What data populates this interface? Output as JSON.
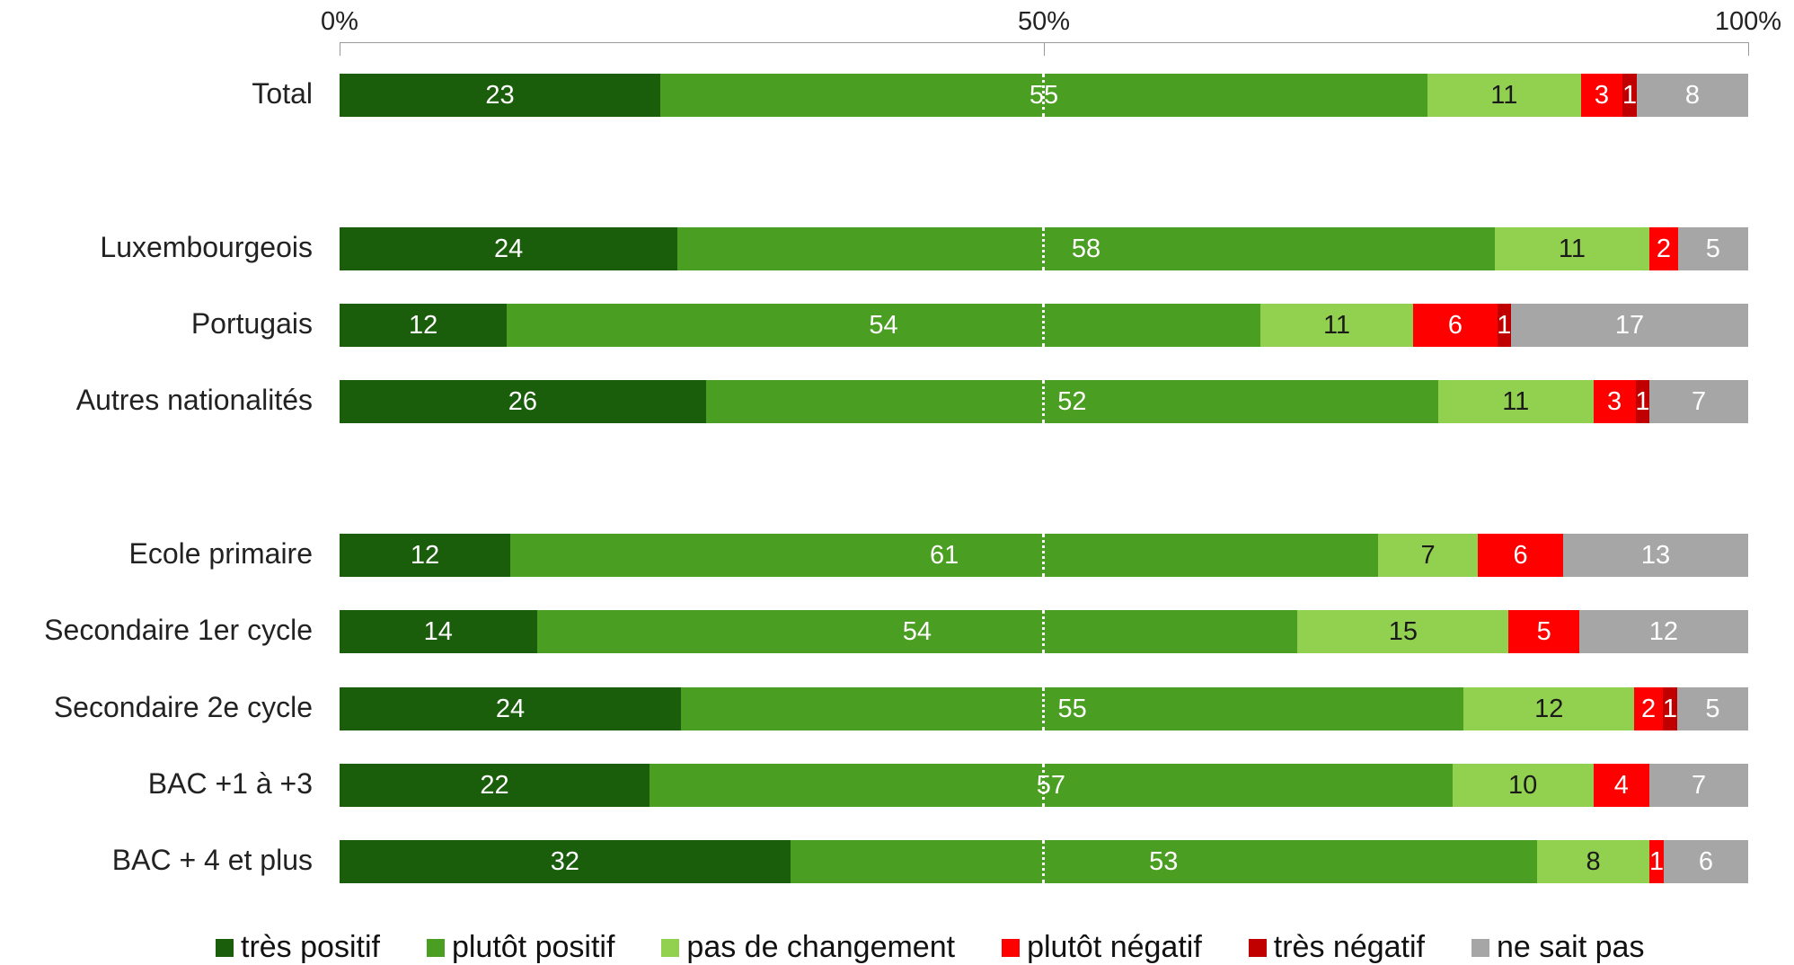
{
  "chart_data": {
    "type": "bar",
    "orientation": "horizontal",
    "stacked": true,
    "xlim": [
      0,
      100
    ],
    "x_ticks": [
      "0%",
      "50%",
      "100%"
    ],
    "categories": [
      "Total",
      "Luxembourgeois",
      "Portugais",
      "Autres nationalités",
      "Ecole primaire",
      "Secondaire 1er cycle",
      "Secondaire 2e cycle",
      "BAC +1 à +3",
      "BAC + 4 et plus"
    ],
    "series": [
      {
        "name": "très positif",
        "color": "#1a5e0b",
        "values": [
          23,
          24,
          12,
          26,
          12,
          14,
          24,
          22,
          32
        ]
      },
      {
        "name": "plutôt positif",
        "color": "#4a9e21",
        "values": [
          55,
          58,
          54,
          52,
          61,
          54,
          55,
          57,
          53
        ]
      },
      {
        "name": "pas de changement",
        "color": "#92d050",
        "values": [
          11,
          11,
          11,
          11,
          7,
          15,
          12,
          10,
          8
        ]
      },
      {
        "name": "plutôt négatif",
        "color": "#ff0000",
        "values": [
          3,
          2,
          6,
          3,
          6,
          5,
          2,
          4,
          1
        ]
      },
      {
        "name": "très négatif",
        "color": "#c00000",
        "values": [
          1,
          0,
          1,
          1,
          0,
          0,
          1,
          0,
          0
        ]
      },
      {
        "name": "ne sait pas",
        "color": "#a6a6a6",
        "values": [
          8,
          5,
          17,
          7,
          13,
          12,
          5,
          7,
          6
        ]
      }
    ],
    "legend_position": "bottom",
    "grid": false
  }
}
